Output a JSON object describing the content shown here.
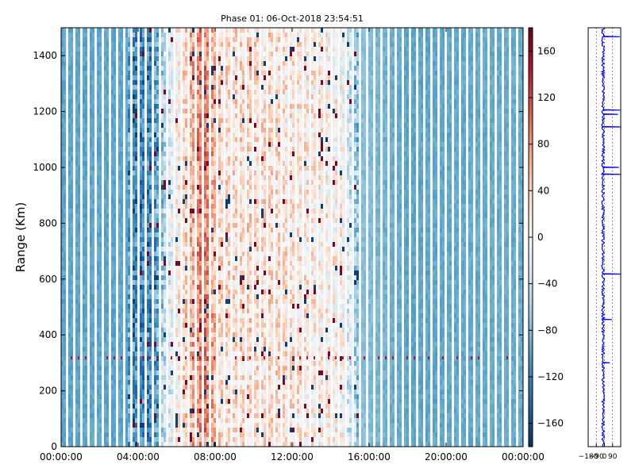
{
  "chart_data": [
    {
      "type": "heatmap",
      "title": "Phase 01: 06-Oct-2018 23:54:51",
      "xlabel": "",
      "ylabel": "Range (Km)",
      "x_ticks": [
        "00:00:00",
        "04:00:00",
        "08:00:00",
        "12:00:00",
        "16:00:00",
        "20:00:00",
        "00:00:00"
      ],
      "x_range_hours": [
        0,
        24
      ],
      "y_ticks": [
        0,
        200,
        400,
        600,
        800,
        1000,
        1200,
        1400
      ],
      "ylim": [
        0,
        1500
      ],
      "colorbar": {
        "ticks": [
          -160,
          -120,
          -80,
          -40,
          0,
          40,
          80,
          120,
          160
        ],
        "range": [
          -180,
          180
        ],
        "colormap": "RdBu_r"
      },
      "column_profile_hours": [
        0,
        3.5,
        4.1,
        4.8,
        5.5,
        6.5,
        7.4,
        8.3,
        10.5,
        14.5,
        15.5,
        18,
        24
      ],
      "column_profile_phase": [
        -95,
        -95,
        -120,
        -115,
        -30,
        40,
        95,
        30,
        30,
        10,
        -75,
        -95,
        -90
      ],
      "noise_amplitude_phase": 45,
      "interference_line_range_km": 318,
      "white_gap_columns": true
    },
    {
      "type": "line",
      "title": "",
      "xlabel": "",
      "ylabel": "",
      "x_ticks": [
        -180,
        -90,
        0,
        90
      ],
      "xlim": [
        -180,
        180
      ],
      "ylim": [
        0,
        1500
      ],
      "grid": true,
      "series": [
        {
          "color": "#0000ff",
          "baseline_phase": -15,
          "spikes": [
            {
              "range": 1468,
              "phase": 170
            },
            {
              "range": 1328,
              "phase": -25
            },
            {
              "range": 1205,
              "phase": 175
            },
            {
              "range": 1190,
              "phase": 150
            },
            {
              "range": 1145,
              "phase": 180
            },
            {
              "range": 1000,
              "phase": 160
            },
            {
              "range": 975,
              "phase": 180
            },
            {
              "range": 618,
              "phase": 180
            },
            {
              "range": 455,
              "phase": 85
            },
            {
              "range": 300,
              "phase": 60
            }
          ]
        }
      ]
    }
  ]
}
